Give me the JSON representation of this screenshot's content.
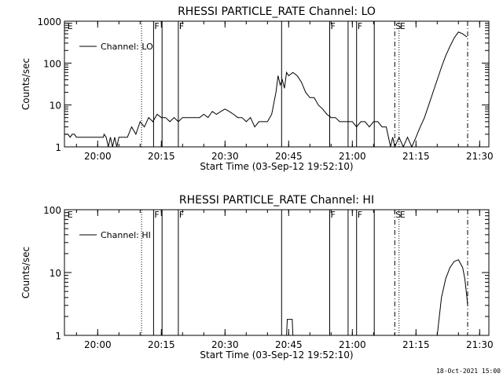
{
  "footer_timestamp": "18-Oct-2021 15:00",
  "chart_data": [
    {
      "type": "line",
      "title": "RHESSI PARTICLE_RATE Channel: LO",
      "xlabel": "Start Time (03-Sep-12 19:52:10)",
      "ylabel": "Counts/sec",
      "yscale": "log",
      "ylim": [
        1,
        1000
      ],
      "xlim": [
        "19:52:10",
        "21:32:10"
      ],
      "x_ticks": [
        "20:00",
        "20:15",
        "20:30",
        "20:45",
        "21:00",
        "21:15",
        "21:30"
      ],
      "y_ticks": [
        "1",
        "10",
        "100",
        "1000"
      ],
      "legend": {
        "position": "top-left",
        "entries": [
          "Channel: LO"
        ]
      },
      "annotations": [
        {
          "time": "19:52:40",
          "label": "E",
          "line": "none"
        },
        {
          "time": "20:10:20",
          "label": "",
          "line": "dotted"
        },
        {
          "time": "20:13:10",
          "label": "F",
          "line": "solid"
        },
        {
          "time": "20:15:10",
          "label": "",
          "line": "solid"
        },
        {
          "time": "20:19:00",
          "label": "F",
          "line": "solid"
        },
        {
          "time": "20:43:20",
          "label": "",
          "line": "solid"
        },
        {
          "time": "20:54:40",
          "label": "F",
          "line": "solid"
        },
        {
          "time": "20:59:00",
          "label": "",
          "line": "solid"
        },
        {
          "time": "21:01:00",
          "label": "F",
          "line": "solid"
        },
        {
          "time": "21:05:10",
          "label": "",
          "line": "solid"
        },
        {
          "time": "21:10:00",
          "label": "S",
          "line": "dashdot"
        },
        {
          "time": "21:11:00",
          "label": "E",
          "line": "dotted"
        },
        {
          "time": "21:27:10",
          "label": "",
          "line": "dashdot"
        }
      ],
      "series": [
        {
          "values": [
            [
              "19:52:10",
              2
            ],
            [
              "19:53:00",
              2
            ],
            [
              "19:53:30",
              1.7
            ],
            [
              "19:54:00",
              2
            ],
            [
              "19:54:30",
              2
            ],
            [
              "19:55:00",
              1.7
            ],
            [
              "19:56:00",
              1.7
            ],
            [
              "20:00:00",
              1.7
            ],
            [
              "20:01:20",
              1.7
            ],
            [
              "20:01:30",
              2
            ],
            [
              "20:02:00",
              1.7
            ],
            [
              "20:02:30",
              1
            ],
            [
              "20:03:00",
              1.7
            ],
            [
              "20:03:30",
              1
            ],
            [
              "20:04:00",
              1.7
            ],
            [
              "20:04:30",
              1
            ],
            [
              "20:05:00",
              1.7
            ],
            [
              "20:06:00",
              1.7
            ],
            [
              "20:07:00",
              1.7
            ],
            [
              "20:08:00",
              3
            ],
            [
              "20:09:00",
              2
            ],
            [
              "20:10:00",
              4
            ],
            [
              "20:11:00",
              3
            ],
            [
              "20:12:00",
              5
            ],
            [
              "20:13:00",
              4
            ],
            [
              "20:14:00",
              6
            ],
            [
              "20:15:00",
              5
            ],
            [
              "20:16:00",
              5
            ],
            [
              "20:17:00",
              4
            ],
            [
              "20:18:00",
              5
            ],
            [
              "20:19:00",
              4
            ],
            [
              "20:20:00",
              5
            ],
            [
              "20:22:00",
              5
            ],
            [
              "20:24:00",
              5
            ],
            [
              "20:25:00",
              6
            ],
            [
              "20:26:00",
              5
            ],
            [
              "20:27:00",
              7
            ],
            [
              "20:28:00",
              6
            ],
            [
              "20:29:00",
              7
            ],
            [
              "20:30:00",
              8
            ],
            [
              "20:31:00",
              7
            ],
            [
              "20:32:00",
              6
            ],
            [
              "20:33:00",
              5
            ],
            [
              "20:34:00",
              5
            ],
            [
              "20:35:00",
              4
            ],
            [
              "20:36:00",
              5
            ],
            [
              "20:37:00",
              3
            ],
            [
              "20:38:00",
              4
            ],
            [
              "20:39:00",
              4
            ],
            [
              "20:40:00",
              4
            ],
            [
              "20:41:00",
              6
            ],
            [
              "20:42:00",
              20
            ],
            [
              "20:42:30",
              50
            ],
            [
              "20:43:00",
              30
            ],
            [
              "20:43:30",
              40
            ],
            [
              "20:44:00",
              25
            ],
            [
              "20:44:30",
              60
            ],
            [
              "20:45:00",
              50
            ],
            [
              "20:46:00",
              60
            ],
            [
              "20:47:00",
              50
            ],
            [
              "20:48:00",
              35
            ],
            [
              "20:49:00",
              20
            ],
            [
              "20:50:00",
              15
            ],
            [
              "20:51:00",
              15
            ],
            [
              "20:52:00",
              10
            ],
            [
              "20:53:00",
              8
            ],
            [
              "20:54:00",
              6
            ],
            [
              "20:55:00",
              5
            ],
            [
              "20:56:00",
              5
            ],
            [
              "20:57:00",
              4
            ],
            [
              "20:58:00",
              4
            ],
            [
              "21:00:00",
              4
            ],
            [
              "21:01:00",
              3
            ],
            [
              "21:02:00",
              4
            ],
            [
              "21:03:00",
              4
            ],
            [
              "21:04:00",
              3
            ],
            [
              "21:05:00",
              4
            ],
            [
              "21:06:00",
              4
            ],
            [
              "21:07:00",
              3
            ],
            [
              "21:08:00",
              3
            ],
            [
              "21:09:00",
              1
            ],
            [
              "21:09:30",
              1.7
            ],
            [
              "21:10:00",
              1
            ],
            [
              "21:11:00",
              1.7
            ],
            [
              "21:12:00",
              1
            ],
            [
              "21:13:00",
              1.7
            ],
            [
              "21:14:00",
              1
            ],
            [
              "21:15:00",
              1.7
            ],
            [
              "21:16:00",
              3
            ],
            [
              "21:17:00",
              5
            ],
            [
              "21:18:00",
              10
            ],
            [
              "21:19:00",
              20
            ],
            [
              "21:20:00",
              40
            ],
            [
              "21:21:00",
              80
            ],
            [
              "21:22:00",
              150
            ],
            [
              "21:23:00",
              250
            ],
            [
              "21:24:00",
              400
            ],
            [
              "21:25:00",
              550
            ],
            [
              "21:26:00",
              500
            ],
            [
              "21:27:00",
              420
            ]
          ]
        }
      ]
    },
    {
      "type": "line",
      "title": "RHESSI PARTICLE_RATE Channel: HI",
      "xlabel": "Start Time (03-Sep-12 19:52:10)",
      "ylabel": "Counts/sec",
      "yscale": "log",
      "ylim": [
        1,
        100
      ],
      "xlim": [
        "19:52:10",
        "21:32:10"
      ],
      "x_ticks": [
        "20:00",
        "20:15",
        "20:30",
        "20:45",
        "21:00",
        "21:15",
        "21:30"
      ],
      "y_ticks": [
        "1",
        "10",
        "100"
      ],
      "legend": {
        "position": "top-left",
        "entries": [
          "Channel: HI"
        ]
      },
      "annotations": [
        {
          "time": "19:52:40",
          "label": "E",
          "line": "none"
        },
        {
          "time": "20:10:20",
          "label": "",
          "line": "dotted"
        },
        {
          "time": "20:13:10",
          "label": "F",
          "line": "solid"
        },
        {
          "time": "20:15:10",
          "label": "",
          "line": "solid"
        },
        {
          "time": "20:19:00",
          "label": "F",
          "line": "solid"
        },
        {
          "time": "20:43:20",
          "label": "",
          "line": "solid"
        },
        {
          "time": "20:54:40",
          "label": "F",
          "line": "solid"
        },
        {
          "time": "20:59:00",
          "label": "",
          "line": "solid"
        },
        {
          "time": "21:01:00",
          "label": "F",
          "line": "solid"
        },
        {
          "time": "21:05:10",
          "label": "",
          "line": "solid"
        },
        {
          "time": "21:10:00",
          "label": "S",
          "line": "dashdot"
        },
        {
          "time": "21:11:00",
          "label": "E",
          "line": "dotted"
        },
        {
          "time": "21:27:10",
          "label": "",
          "line": "dashdot"
        }
      ],
      "series": [
        {
          "values": [
            [
              "20:44:30",
              1
            ],
            [
              "20:44:40",
              1.8
            ],
            [
              "20:45:50",
              1.8
            ],
            [
              "20:46:00",
              1
            ],
            [
              "21:20:00",
              1
            ],
            [
              "21:20:30",
              2
            ],
            [
              "21:21:00",
              4
            ],
            [
              "21:22:00",
              8
            ],
            [
              "21:23:00",
              12
            ],
            [
              "21:24:00",
              15
            ],
            [
              "21:25:00",
              16
            ],
            [
              "21:26:00",
              12
            ],
            [
              "21:26:30",
              8
            ],
            [
              "21:27:00",
              4
            ],
            [
              "21:27:10",
              3
            ]
          ]
        }
      ]
    }
  ]
}
